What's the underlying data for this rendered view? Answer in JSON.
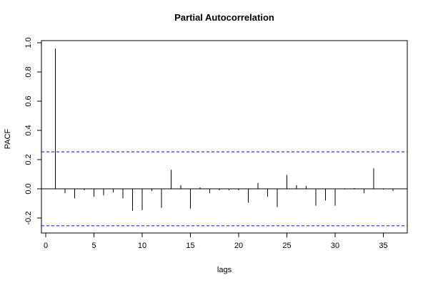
{
  "chart_data": {
    "type": "bar",
    "title": "Partial Autocorrelation",
    "xlabel": "lags",
    "ylabel": "PACF",
    "xlim": [
      0,
      37
    ],
    "ylim": [
      -0.3,
      1.0
    ],
    "x_ticks": [
      0,
      5,
      10,
      15,
      20,
      25,
      30,
      35
    ],
    "y_ticks": [
      -0.2,
      0.0,
      0.2,
      0.4,
      0.6,
      0.8,
      1.0
    ],
    "y_tick_labels": [
      "-0.2",
      "0.0",
      "0.2",
      "0.4",
      "0.6",
      "0.8",
      "1.0"
    ],
    "confidence_bounds": [
      0.253,
      -0.253
    ],
    "confidence_color": "#0000ff",
    "lags": [
      1,
      2,
      3,
      4,
      5,
      6,
      7,
      8,
      9,
      10,
      11,
      12,
      13,
      14,
      15,
      16,
      17,
      18,
      19,
      20,
      21,
      22,
      23,
      24,
      25,
      26,
      27,
      28,
      29,
      30,
      31,
      32,
      33,
      34,
      35,
      36
    ],
    "values": [
      0.96,
      -0.03,
      -0.065,
      -0.01,
      -0.055,
      -0.045,
      -0.025,
      -0.065,
      -0.15,
      -0.145,
      -0.015,
      -0.13,
      0.13,
      0.025,
      -0.135,
      0.01,
      -0.03,
      -0.01,
      -0.01,
      -0.01,
      -0.095,
      0.04,
      -0.055,
      -0.125,
      0.095,
      0.025,
      0.02,
      -0.115,
      -0.08,
      -0.115,
      -0.005,
      0.005,
      -0.03,
      0.14,
      -0.005,
      -0.015
    ],
    "grid": false
  }
}
